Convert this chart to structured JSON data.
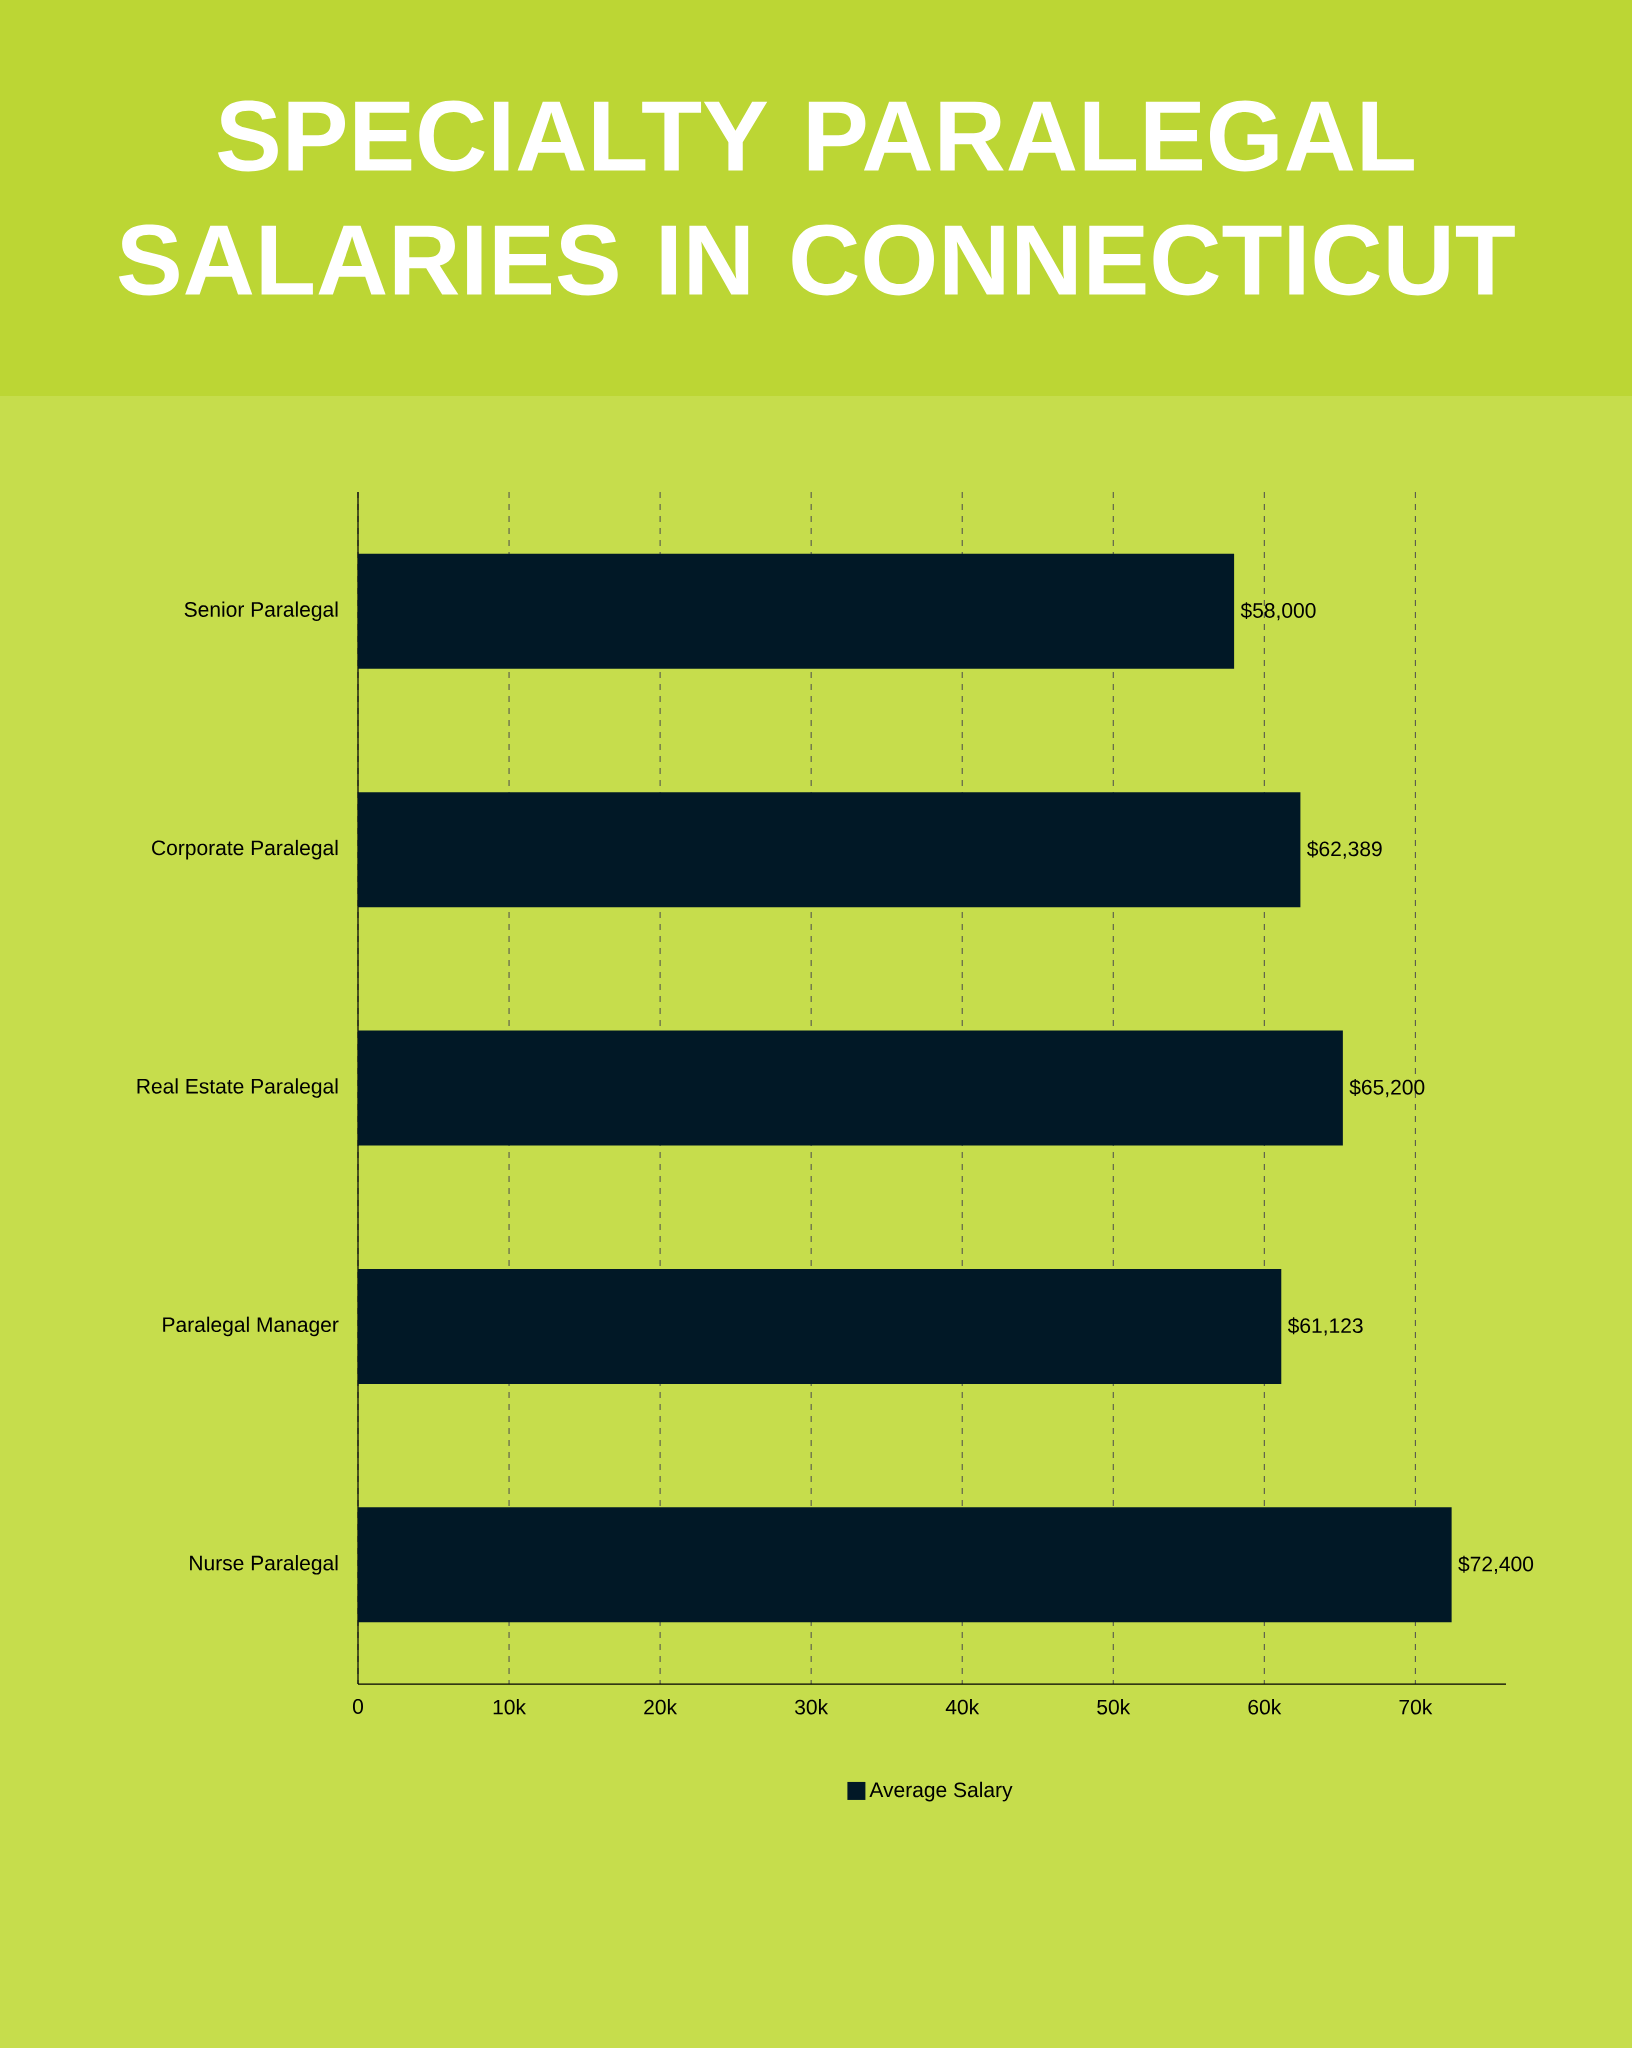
{
  "chart_data": {
    "type": "bar",
    "orientation": "horizontal",
    "title": "SPECIALTY PARALEGAL SALARIES IN CONNECTICUT",
    "categories": [
      "Senior Paralegal",
      "Corporate Paralegal",
      "Real Estate Paralegal",
      "Paralegal Manager",
      "Nurse Paralegal"
    ],
    "series": [
      {
        "name": "Average Salary",
        "color": "#011826",
        "values": [
          58000,
          62389,
          65200,
          61123,
          72400
        ],
        "value_labels": [
          "$58,000",
          "$62,389",
          "$65,200",
          "$61,123",
          "$72,400"
        ]
      }
    ],
    "xlim": [
      0,
      76000
    ],
    "xticks": [
      0,
      {
        "value": 10000,
        "label": "10k"
      },
      {
        "value": 20000,
        "label": "20k"
      },
      {
        "value": 30000,
        "label": "30k"
      },
      {
        "value": 40000,
        "label": "40k"
      },
      {
        "value": 50000,
        "label": "50k"
      },
      {
        "value": 60000,
        "label": "60k"
      },
      {
        "value": 70000,
        "label": "70k"
      }
    ],
    "grid": "x",
    "legend": "bottom"
  }
}
